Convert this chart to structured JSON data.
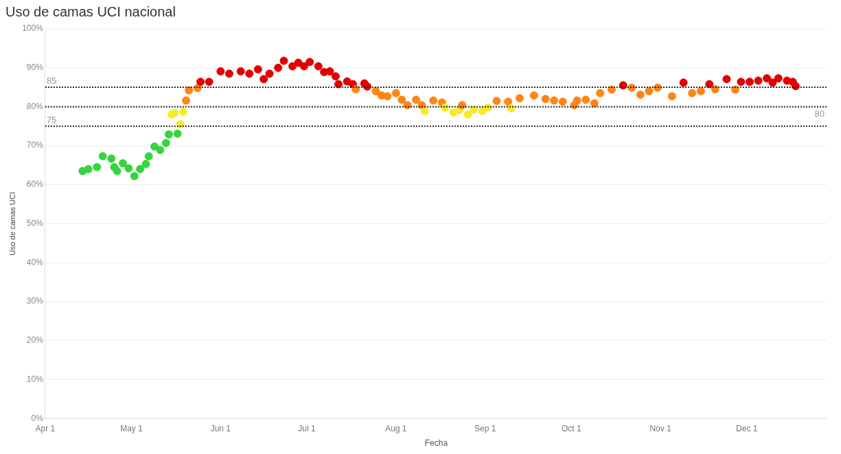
{
  "chart_data": {
    "type": "scatter",
    "title": "Uso de camas UCI nacional",
    "xlabel": "Fecha",
    "ylabel": "Uso de camas UCI",
    "xlim": [
      "--04-01",
      "--12-29"
    ],
    "xticks": [
      {
        "value": "--04-01",
        "label": "Apr 1"
      },
      {
        "value": "--05-01",
        "label": "May 1"
      },
      {
        "value": "--06-01",
        "label": "Jun 1"
      },
      {
        "value": "--07-01",
        "label": "Jul 1"
      },
      {
        "value": "--08-01",
        "label": "Aug 1"
      },
      {
        "value": "--09-01",
        "label": "Sep 1"
      },
      {
        "value": "--10-01",
        "label": "Oct 1"
      },
      {
        "value": "--11-01",
        "label": "Nov 1"
      },
      {
        "value": "--12-01",
        "label": "Dec 1"
      }
    ],
    "ylim": [
      0,
      100
    ],
    "yticks": [
      {
        "value": 0,
        "label": "0%"
      },
      {
        "value": 10,
        "label": "10%"
      },
      {
        "value": 20,
        "label": "20%"
      },
      {
        "value": 30,
        "label": "30%"
      },
      {
        "value": 40,
        "label": "40%"
      },
      {
        "value": 50,
        "label": "50%"
      },
      {
        "value": 60,
        "label": "60%"
      },
      {
        "value": 70,
        "label": "70%"
      },
      {
        "value": 80,
        "label": "80%"
      },
      {
        "value": 90,
        "label": "90%"
      },
      {
        "value": 100,
        "label": "100%"
      }
    ],
    "grid": "y",
    "legend": false,
    "marker": "circle",
    "ref_lines": [
      {
        "axis": "y",
        "value": 85,
        "label": "85",
        "color": "#222222",
        "line_style": "dotted"
      },
      {
        "axis": "y",
        "value": 80,
        "label": "80",
        "color": "#222222",
        "line_style": "dotted"
      },
      {
        "axis": "y",
        "value": 75,
        "label": "75",
        "color": "#222222",
        "line_style": "dotted"
      }
    ],
    "series": [
      {
        "x": [
          "--04-14",
          "--04-16",
          "--04-19",
          "--04-21",
          "--04-24",
          "--04-25",
          "--04-26",
          "--04-28",
          "--04-30",
          "--05-02",
          "--05-04",
          "--05-06",
          "--05-07",
          "--05-09",
          "--05-11",
          "--05-13",
          "--05-14",
          "--05-15",
          "--05-16",
          "--05-17",
          "--05-18",
          "--05-19",
          "--05-20",
          "--05-21",
          "--05-24",
          "--05-25",
          "--05-28",
          "--06-01",
          "--06-04",
          "--06-08",
          "--06-11",
          "--06-14",
          "--06-16",
          "--06-18",
          "--06-21",
          "--06-23",
          "--06-26",
          "--06-28",
          "--06-30",
          "--07-02",
          "--07-05",
          "--07-07",
          "--07-09",
          "--07-11",
          "--07-12",
          "--07-15",
          "--07-17",
          "--07-18",
          "--07-21",
          "--07-22",
          "--07-25",
          "--07-27",
          "--07-29",
          "--08-01",
          "--08-03",
          "--08-05",
          "--08-08",
          "--08-10",
          "--08-11",
          "--08-14",
          "--08-17",
          "--08-18",
          "--08-21",
          "--08-23",
          "--08-24",
          "--08-26",
          "--08-28",
          "--08-31",
          "--09-02",
          "--09-05",
          "--09-09",
          "--09-10",
          "--09-13",
          "--09-18",
          "--09-22",
          "--09-25",
          "--09-28",
          "--10-02",
          "--10-03",
          "--10-06",
          "--10-09",
          "--10-11",
          "--10-15",
          "--10-19",
          "--10-22",
          "--10-25",
          "--10-28",
          "--10-31",
          "--11-05",
          "--11-09",
          "--11-12",
          "--11-15",
          "--11-18",
          "--11-20",
          "--11-24",
          "--11-27",
          "--11-29",
          "--12-02",
          "--12-05",
          "--12-08",
          "--12-10",
          "--12-12",
          "--12-15",
          "--12-17",
          "--12-18"
        ],
        "values": [
          63.5,
          64.0,
          64.5,
          67.3,
          66.7,
          64.5,
          63.5,
          65.5,
          64.2,
          62.2,
          64.0,
          65.3,
          67.3,
          69.8,
          68.9,
          70.7,
          72.9,
          78.0,
          78.4,
          73.1,
          75.5,
          78.7,
          81.6,
          84.2,
          84.8,
          86.4,
          86.4,
          89.1,
          88.5,
          89.1,
          88.5,
          89.6,
          87.1,
          88.5,
          90.0,
          91.8,
          90.4,
          91.3,
          90.4,
          91.5,
          90.4,
          88.9,
          89.1,
          87.8,
          85.8,
          86.5,
          85.8,
          84.5,
          86.0,
          85.2,
          84.0,
          82.9,
          82.7,
          83.5,
          81.8,
          80.4,
          81.8,
          80.4,
          78.9,
          81.6,
          81.1,
          79.8,
          78.5,
          79.1,
          80.4,
          78.0,
          79.3,
          78.9,
          79.8,
          81.5,
          81.3,
          79.6,
          82.2,
          82.9,
          82.0,
          81.6,
          81.3,
          80.4,
          81.6,
          81.8,
          80.9,
          83.5,
          84.4,
          85.5,
          84.9,
          83.1,
          84.0,
          84.9,
          82.7,
          86.2,
          83.5,
          84.0,
          85.8,
          84.5,
          87.1,
          84.4,
          86.4,
          86.4,
          86.7,
          87.3,
          86.2,
          87.3,
          86.7,
          86.4,
          85.3
        ],
        "colors": [
          "#33d63d",
          "#33d63d",
          "#33d63d",
          "#33d63d",
          "#33d63d",
          "#33d63d",
          "#33d63d",
          "#33d63d",
          "#33d63d",
          "#33d63d",
          "#33d63d",
          "#33d63d",
          "#33d63d",
          "#33d63d",
          "#33d63d",
          "#33d63d",
          "#33d63d",
          "#f7ea2a",
          "#f7ea2a",
          "#33d63d",
          "#f7ea2a",
          "#f7ea2a",
          "#ff8514",
          "#ff8514",
          "#ff8514",
          "#e30000",
          "#e30000",
          "#e30000",
          "#e30000",
          "#e30000",
          "#e30000",
          "#e30000",
          "#e30000",
          "#e30000",
          "#e30000",
          "#e30000",
          "#e30000",
          "#e30000",
          "#e30000",
          "#e30000",
          "#e30000",
          "#e30000",
          "#e30000",
          "#e30000",
          "#e30000",
          "#e30000",
          "#e30000",
          "#ff8514",
          "#e30000",
          "#e30000",
          "#ff8514",
          "#ff8514",
          "#ff8514",
          "#ff8514",
          "#ff8514",
          "#ff8514",
          "#ff8514",
          "#ff8514",
          "#f7ea2a",
          "#ff8514",
          "#ff8514",
          "#f7ea2a",
          "#f7ea2a",
          "#f7ea2a",
          "#ff8514",
          "#f7ea2a",
          "#f7ea2a",
          "#f7ea2a",
          "#f7ea2a",
          "#ff8514",
          "#ff8514",
          "#f7ea2a",
          "#ff8514",
          "#ff8514",
          "#ff8514",
          "#ff8514",
          "#ff8514",
          "#ff8514",
          "#ff8514",
          "#ff8514",
          "#ff8514",
          "#ff8514",
          "#ff8514",
          "#e30000",
          "#ff8514",
          "#ff8514",
          "#ff8514",
          "#ff8514",
          "#ff8514",
          "#e30000",
          "#ff8514",
          "#ff8514",
          "#e30000",
          "#ff8514",
          "#e30000",
          "#ff8514",
          "#e30000",
          "#e30000",
          "#e30000",
          "#e30000",
          "#e30000",
          "#e30000",
          "#e30000",
          "#e30000",
          "#e30000"
        ]
      }
    ]
  }
}
